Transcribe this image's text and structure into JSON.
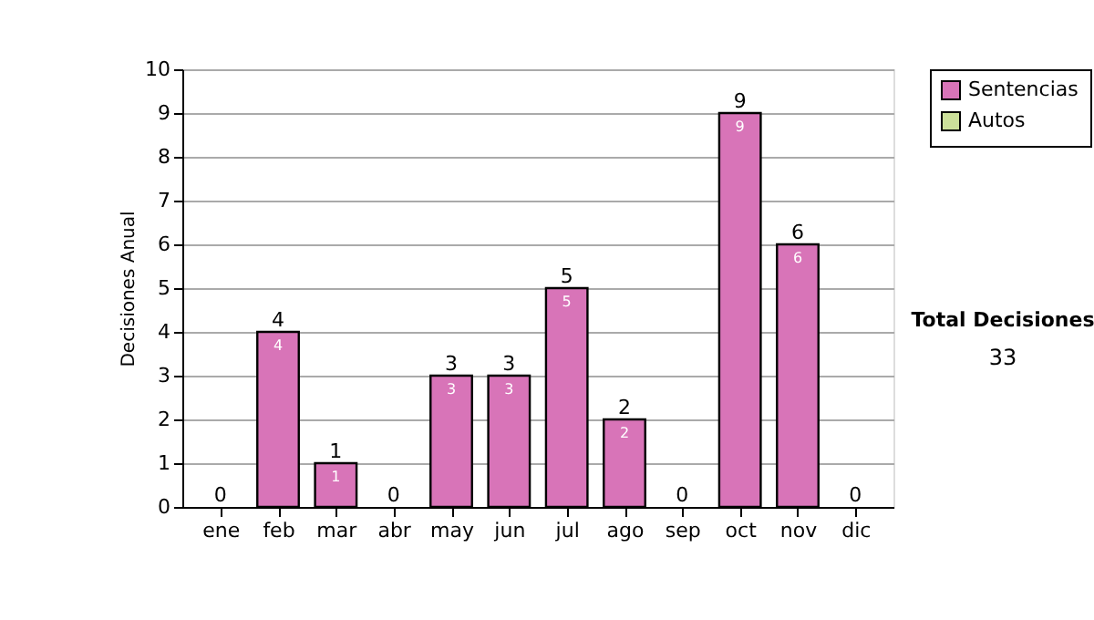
{
  "chart_data": {
    "type": "bar",
    "stacked": true,
    "ylabel": "Decisiones Anual",
    "categories": [
      "ene",
      "feb",
      "mar",
      "abr",
      "may",
      "jun",
      "jul",
      "ago",
      "sep",
      "oct",
      "nov",
      "dic"
    ],
    "series": [
      {
        "name": "Sentencias",
        "color": "#d874b8",
        "values": [
          0,
          4,
          1,
          0,
          3,
          3,
          5,
          2,
          0,
          9,
          6,
          0
        ],
        "value_labels": [
          null,
          "4",
          "1",
          null,
          "3",
          "3",
          "5",
          "2",
          null,
          "9",
          "6",
          null
        ]
      },
      {
        "name": "Autos",
        "color": "#cce09a",
        "values": [
          0,
          0,
          0,
          0,
          0,
          0,
          0,
          0,
          0,
          0,
          0,
          0
        ]
      }
    ],
    "totals": [
      "0",
      "4",
      "1",
      "0",
      "3",
      "3",
      "5",
      "2",
      "0",
      "9",
      "6",
      "0"
    ],
    "ylim": [
      0,
      10
    ],
    "yticks": [
      0,
      1,
      2,
      3,
      4,
      5,
      6,
      7,
      8,
      9,
      10
    ],
    "grid": "y",
    "legend": "right",
    "annotations": [
      "Total Decisiones",
      "33"
    ]
  }
}
